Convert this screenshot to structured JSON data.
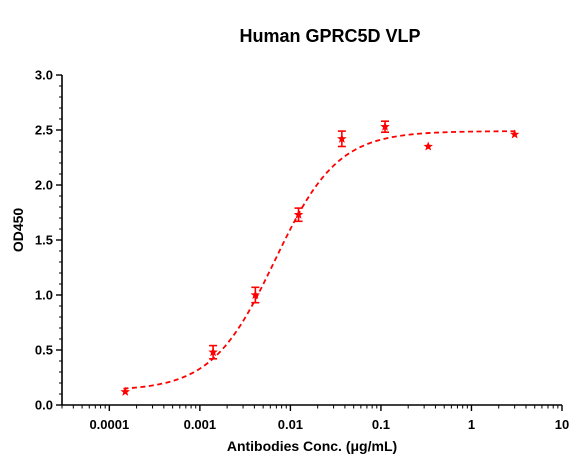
{
  "chart_data": {
    "type": "scatter",
    "title": "Human GPRC5D VLP",
    "xlabel": "Antibodies Conc. (μg/mL)",
    "ylabel": "OD450",
    "x_scale": "log",
    "xlim": [
      3e-05,
      10
    ],
    "ylim": [
      0,
      3.0
    ],
    "x_ticks": [
      0.0001,
      0.001,
      0.01,
      0.1,
      1,
      10
    ],
    "x_tick_labels": [
      "0.0001",
      "0.001",
      "0.01",
      "0.1",
      "1",
      "10"
    ],
    "y_ticks": [
      0,
      0.5,
      1.0,
      1.5,
      2.0,
      2.5,
      3.0
    ],
    "y_tick_labels": [
      "0.0",
      "0.5",
      "1.0",
      "1.5",
      "2.0",
      "2.5",
      "3.0"
    ],
    "grid": false,
    "color": "#ff0000",
    "series": [
      {
        "x": [
          0.00015,
          0.0014,
          0.0041,
          0.0123,
          0.037,
          0.111,
          0.333,
          3.0
        ],
        "y": [
          0.12,
          0.48,
          1.0,
          1.73,
          2.42,
          2.53,
          2.35,
          2.46
        ],
        "err": [
          0.0,
          0.06,
          0.07,
          0.06,
          0.07,
          0.05,
          0.0,
          0.0
        ],
        "fit": {
          "model": "4PL",
          "bottom": 0.13,
          "top": 2.49,
          "ec50": 0.0067,
          "hill": 1.25
        }
      }
    ]
  }
}
